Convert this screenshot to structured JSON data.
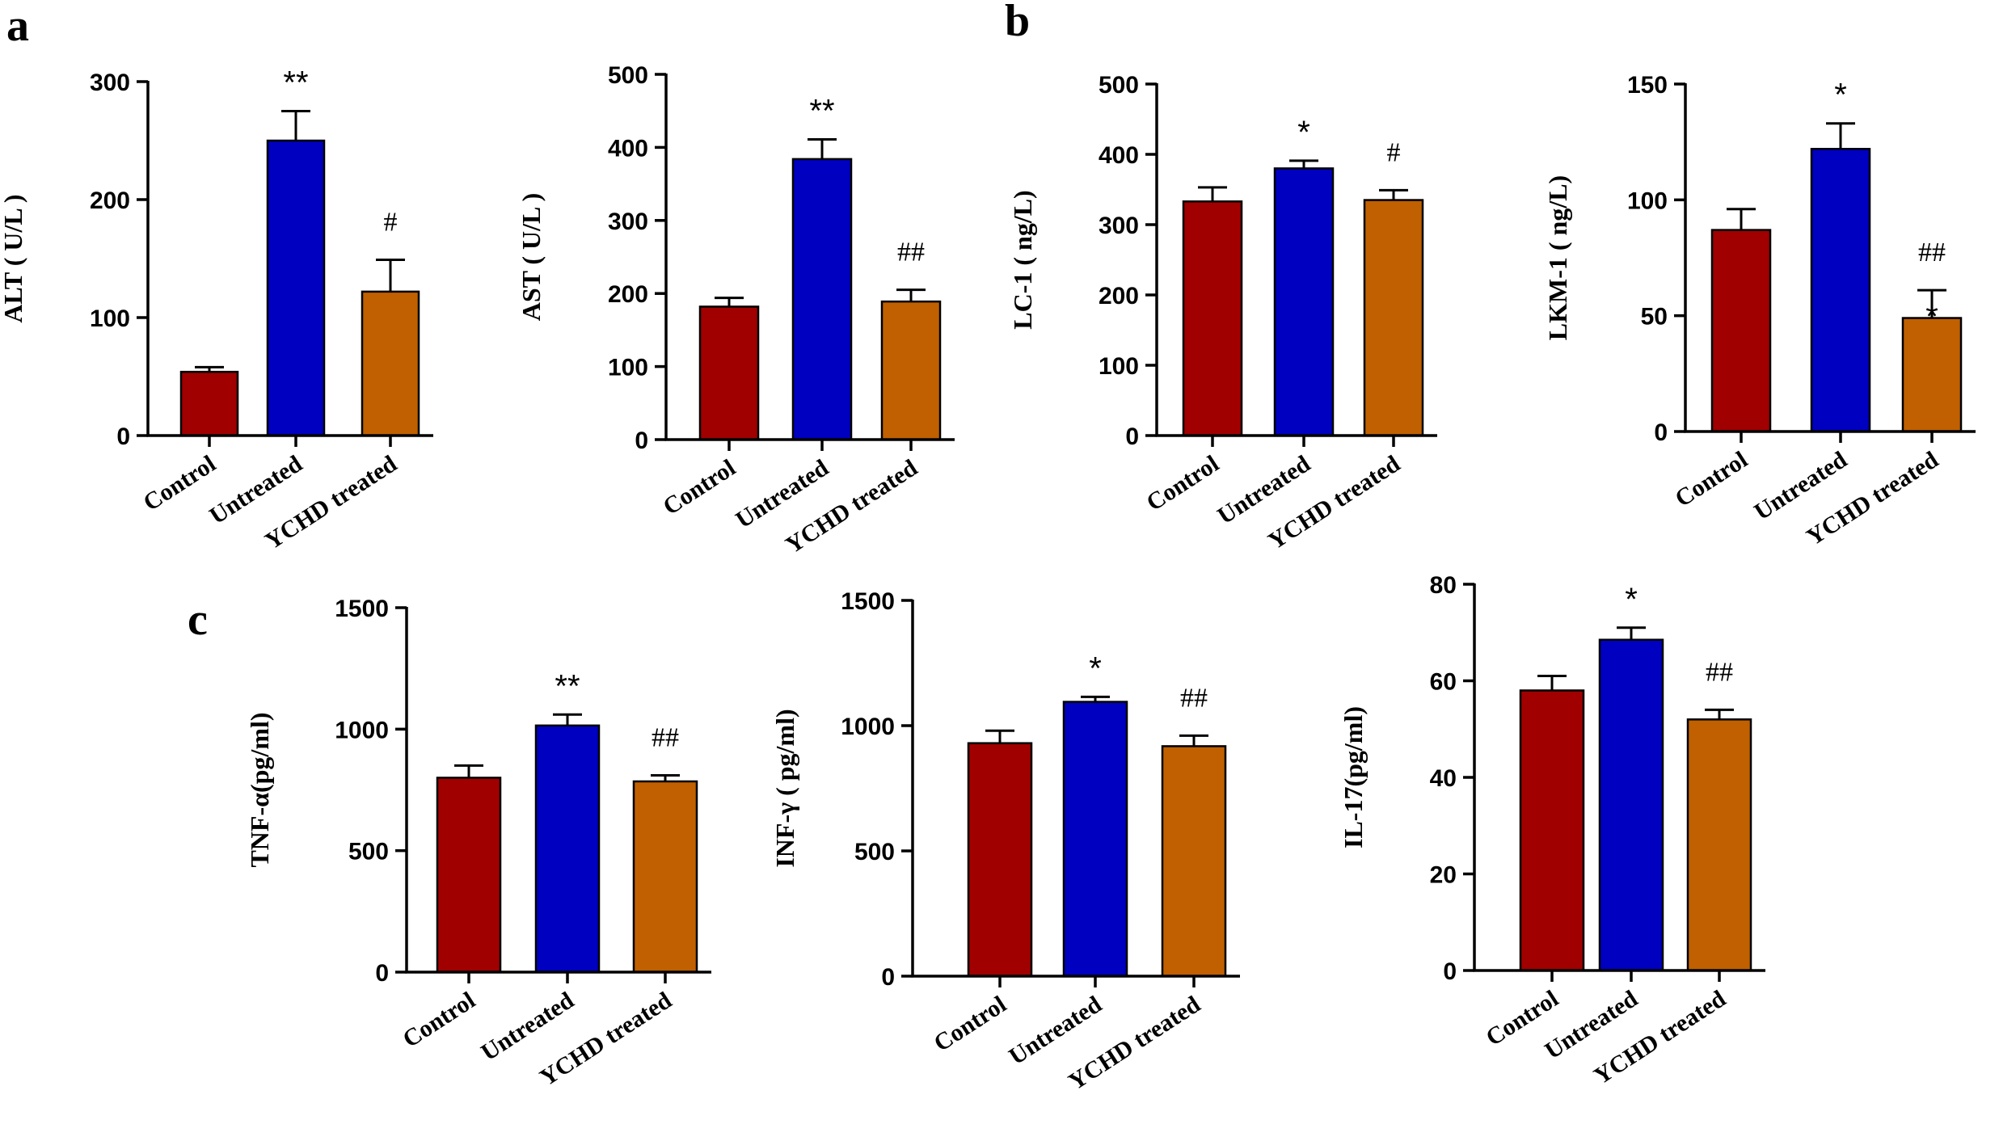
{
  "panel_labels": [
    "a",
    "b",
    "c"
  ],
  "colors": {
    "control": "#A00000",
    "untreated": "#0000C0",
    "ychd": "#C06000",
    "axis": "#000000"
  },
  "chart_data": [
    {
      "type": "bar",
      "panel": "a",
      "categories": [
        "Control",
        "Untreated",
        "YCHD treated"
      ],
      "values": [
        54,
        250,
        122
      ],
      "errors": [
        4,
        25,
        27
      ],
      "annotations": [
        "",
        "**",
        "#"
      ],
      "ylabel": "ALT ( U/L )",
      "ylim": [
        0,
        300
      ],
      "ticks": [
        0,
        100,
        200,
        300
      ]
    },
    {
      "type": "bar",
      "panel": "a",
      "categories": [
        "Control",
        "Untreated",
        "YCHD treated"
      ],
      "values": [
        182,
        384,
        189
      ],
      "errors": [
        12,
        27,
        16
      ],
      "annotations": [
        "",
        "**",
        "##"
      ],
      "ylabel": "AST ( U/L )",
      "ylim": [
        0,
        500
      ],
      "ticks": [
        0,
        100,
        200,
        300,
        400,
        500
      ]
    },
    {
      "type": "bar",
      "panel": "b",
      "categories": [
        "Control",
        "Untreated",
        "YCHD treated"
      ],
      "values": [
        333,
        380,
        335
      ],
      "errors": [
        20,
        11,
        14
      ],
      "annotations": [
        "",
        "*",
        "#"
      ],
      "ylabel": "LC-1 ( ng/L)",
      "ylim": [
        0,
        500
      ],
      "ticks": [
        0,
        100,
        200,
        300,
        400,
        500
      ]
    },
    {
      "type": "bar",
      "panel": "b",
      "categories": [
        "Control",
        "Untreated",
        "YCHD treated"
      ],
      "values": [
        87,
        122,
        49
      ],
      "errors": [
        9,
        11,
        12
      ],
      "annotations": [
        "",
        "*",
        "##\n*"
      ],
      "ylabel": "LKM-1 ( ng/L)",
      "ylim": [
        0,
        150
      ],
      "ticks": [
        0,
        50,
        100,
        150
      ]
    },
    {
      "type": "bar",
      "panel": "c",
      "categories": [
        "Control",
        "Untreated",
        "YCHD treated"
      ],
      "values": [
        800,
        1015,
        785
      ],
      "errors": [
        50,
        45,
        25
      ],
      "annotations": [
        "",
        "**",
        "##"
      ],
      "ylabel": "TNF-α(pg/ml)",
      "ylim": [
        0,
        1500
      ],
      "ticks": [
        0,
        500,
        1000,
        1500
      ]
    },
    {
      "type": "bar",
      "panel": "c",
      "categories": [
        "Control",
        "Untreated",
        "YCHD treated"
      ],
      "values": [
        930,
        1095,
        918
      ],
      "errors": [
        50,
        20,
        42
      ],
      "annotations": [
        "",
        "*",
        "##"
      ],
      "ylabel": "INF-γ ( pg/ml)",
      "ylim": [
        0,
        1500
      ],
      "ticks": [
        0,
        500,
        1000,
        1500
      ]
    },
    {
      "type": "bar",
      "panel": "c",
      "categories": [
        "Control",
        "Untreated",
        "YCHD treated"
      ],
      "values": [
        58,
        68.5,
        52
      ],
      "errors": [
        3,
        2.5,
        2
      ],
      "annotations": [
        "",
        "*",
        "##"
      ],
      "ylabel": "IL-17(pg/ml)",
      "ylim": [
        0,
        80
      ],
      "ticks": [
        0,
        20,
        40,
        60,
        80
      ]
    }
  ]
}
